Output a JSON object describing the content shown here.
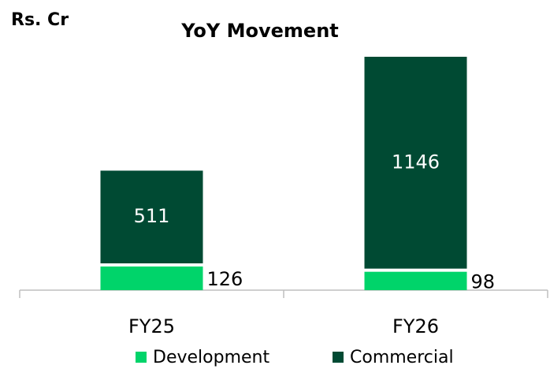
{
  "chart_data": {
    "type": "stacked_bar",
    "title": "YoY Movement",
    "unit_label": "Rs. Cr",
    "categories": [
      "FY25",
      "FY26"
    ],
    "series": [
      {
        "name": "Development",
        "color": "#00d46a",
        "values": [
          126,
          98
        ]
      },
      {
        "name": "Commercial",
        "color": "#004a33",
        "values": [
          511,
          1146
        ]
      }
    ]
  }
}
